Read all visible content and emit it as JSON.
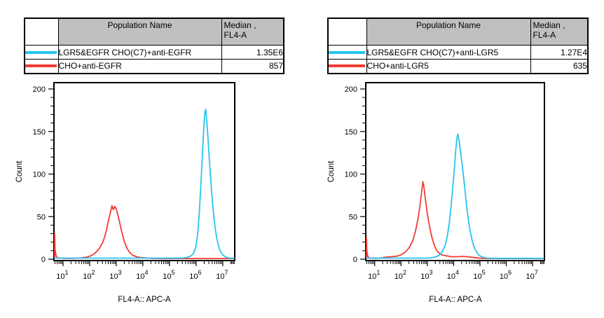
{
  "colors": {
    "cyan_series": "#25C5F0",
    "red_series": "#F53B33",
    "table_header_bg": "#C0C0C0",
    "frame": "#000000"
  },
  "panels": [
    {
      "table": {
        "header": {
          "population": "Population Name",
          "median_line1": "Median ,",
          "median_line2": "FL4-A"
        },
        "rows": [
          {
            "swatch_color": "#25C5F0",
            "population": "LGR5&EGFR CHO(C7)+anti-EGFR",
            "median": "1.35E6"
          },
          {
            "swatch_color": "#F53B33",
            "population": "CHO+anti-EGFR",
            "median": "857"
          }
        ]
      }
    },
    {
      "table": {
        "header": {
          "population": "Population Name",
          "median_line1": "Median ,",
          "median_line2": "FL4-A"
        },
        "rows": [
          {
            "swatch_color": "#25C5F0",
            "population": "LGR5&EGFR CHO(C7)+anti-LGR5",
            "median": "1.27E4"
          },
          {
            "swatch_color": "#F53B33",
            "population": "CHO+anti-LGR5",
            "median": "635"
          }
        ]
      }
    }
  ],
  "chart_data": [
    {
      "type": "line",
      "subtype": "flow-cytometry-histogram",
      "title": "",
      "xlabel": "FL4-A:: APC-A",
      "ylabel": "Count",
      "x_scale": "log10",
      "xlim_log10": [
        0.66,
        7.45
      ],
      "x_ticks_exponents": [
        1,
        2,
        3,
        4,
        5,
        6,
        7
      ],
      "ylim": [
        0,
        207
      ],
      "y_ticks": [
        0,
        50,
        100,
        150,
        200
      ],
      "y_minor_step": 10,
      "grid": false,
      "legend": "table-above",
      "series": [
        {
          "name": "CHO+anti-EGFR",
          "color": "#F53B33",
          "median_fl4a": "857",
          "points_log10x_count": [
            [
              0.66,
              2
            ],
            [
              0.67,
              30
            ],
            [
              0.7,
              12
            ],
            [
              0.74,
              4
            ],
            [
              0.8,
              1.5
            ],
            [
              1.0,
              1
            ],
            [
              1.4,
              1
            ],
            [
              1.7,
              1.5
            ],
            [
              1.9,
              2.5
            ],
            [
              2.05,
              4
            ],
            [
              2.2,
              7
            ],
            [
              2.35,
              12
            ],
            [
              2.5,
              20
            ],
            [
              2.6,
              30
            ],
            [
              2.7,
              44
            ],
            [
              2.78,
              55
            ],
            [
              2.84,
              63
            ],
            [
              2.89,
              58
            ],
            [
              2.95,
              62
            ],
            [
              3.0,
              59
            ],
            [
              3.06,
              52
            ],
            [
              3.12,
              44
            ],
            [
              3.2,
              33
            ],
            [
              3.3,
              21
            ],
            [
              3.4,
              13
            ],
            [
              3.5,
              8
            ],
            [
              3.62,
              4.5
            ],
            [
              3.75,
              3
            ],
            [
              3.9,
              2
            ],
            [
              4.1,
              1.5
            ],
            [
              4.35,
              1
            ],
            [
              4.7,
              0.7
            ],
            [
              7.45,
              0.7
            ]
          ]
        },
        {
          "name": "LGR5&EGFR CHO(C7)+anti-EGFR",
          "color": "#25C5F0",
          "median_fl4a": "1.35E6",
          "points_log10x_count": [
            [
              0.66,
              1.2
            ],
            [
              5.3,
              1.2
            ],
            [
              5.55,
              1.5
            ],
            [
              5.7,
              2.5
            ],
            [
              5.82,
              4
            ],
            [
              5.92,
              8
            ],
            [
              6.0,
              16
            ],
            [
              6.06,
              30
            ],
            [
              6.12,
              55
            ],
            [
              6.18,
              88
            ],
            [
              6.24,
              125
            ],
            [
              6.29,
              155
            ],
            [
              6.33,
              173
            ],
            [
              6.36,
              176
            ],
            [
              6.4,
              162
            ],
            [
              6.44,
              145
            ],
            [
              6.48,
              126
            ],
            [
              6.52,
              106
            ],
            [
              6.57,
              84
            ],
            [
              6.62,
              64
            ],
            [
              6.67,
              48
            ],
            [
              6.72,
              35
            ],
            [
              6.78,
              24
            ],
            [
              6.84,
              16
            ],
            [
              6.9,
              10
            ],
            [
              6.98,
              6
            ],
            [
              7.06,
              3.5
            ],
            [
              7.15,
              2
            ],
            [
              7.28,
              1.2
            ],
            [
              7.45,
              1
            ]
          ]
        }
      ]
    },
    {
      "type": "line",
      "subtype": "flow-cytometry-histogram",
      "title": "",
      "xlabel": "FL4-A:: APC-A",
      "ylabel": "Count",
      "x_scale": "log10",
      "xlim_log10": [
        0.66,
        7.45
      ],
      "x_ticks_exponents": [
        1,
        2,
        3,
        4,
        5,
        6,
        7
      ],
      "ylim": [
        0,
        207
      ],
      "y_ticks": [
        0,
        50,
        100,
        150,
        200
      ],
      "y_minor_step": 10,
      "grid": false,
      "legend": "table-above",
      "series": [
        {
          "name": "CHO+anti-LGR5",
          "color": "#F53B33",
          "median_fl4a": "635",
          "points_log10x_count": [
            [
              0.66,
              2
            ],
            [
              0.67,
              25
            ],
            [
              0.7,
              10
            ],
            [
              0.74,
              3
            ],
            [
              0.8,
              1.2
            ],
            [
              1.05,
              1
            ],
            [
              1.25,
              1.5
            ],
            [
              1.45,
              2.5
            ],
            [
              1.65,
              3
            ],
            [
              1.85,
              3.5
            ],
            [
              2.0,
              5
            ],
            [
              2.15,
              8
            ],
            [
              2.3,
              13
            ],
            [
              2.45,
              22
            ],
            [
              2.55,
              33
            ],
            [
              2.65,
              48
            ],
            [
              2.72,
              63
            ],
            [
              2.78,
              78
            ],
            [
              2.83,
              91
            ],
            [
              2.87,
              85
            ],
            [
              2.92,
              72
            ],
            [
              2.98,
              58
            ],
            [
              3.04,
              46
            ],
            [
              3.1,
              36
            ],
            [
              3.18,
              25
            ],
            [
              3.27,
              16
            ],
            [
              3.36,
              10
            ],
            [
              3.45,
              7
            ],
            [
              3.55,
              5
            ],
            [
              3.7,
              4
            ],
            [
              3.9,
              3
            ],
            [
              4.1,
              2.8
            ],
            [
              4.3,
              3.2
            ],
            [
              4.5,
              3
            ],
            [
              4.7,
              2.2
            ],
            [
              4.9,
              1.5
            ],
            [
              5.1,
              1
            ],
            [
              5.4,
              0.7
            ],
            [
              7.45,
              0.7
            ]
          ]
        },
        {
          "name": "LGR5&EGFR CHO(C7)+anti-LGR5",
          "color": "#25C5F0",
          "median_fl4a": "1.27E4",
          "points_log10x_count": [
            [
              0.66,
              1.2
            ],
            [
              2.9,
              1.2
            ],
            [
              3.1,
              1.5
            ],
            [
              3.3,
              2.5
            ],
            [
              3.45,
              4.5
            ],
            [
              3.55,
              8
            ],
            [
              3.65,
              14
            ],
            [
              3.75,
              25
            ],
            [
              3.83,
              42
            ],
            [
              3.9,
              62
            ],
            [
              3.97,
              85
            ],
            [
              4.03,
              108
            ],
            [
              4.08,
              128
            ],
            [
              4.13,
              143
            ],
            [
              4.16,
              147
            ],
            [
              4.2,
              141
            ],
            [
              4.26,
              126
            ],
            [
              4.32,
              112
            ],
            [
              4.38,
              96
            ],
            [
              4.44,
              78
            ],
            [
              4.5,
              60
            ],
            [
              4.57,
              44
            ],
            [
              4.64,
              31
            ],
            [
              4.71,
              21
            ],
            [
              4.78,
              14
            ],
            [
              4.86,
              9
            ],
            [
              4.95,
              5
            ],
            [
              5.05,
              3
            ],
            [
              5.15,
              2
            ],
            [
              5.3,
              1.2
            ],
            [
              5.6,
              1
            ],
            [
              7.45,
              1
            ]
          ]
        }
      ]
    }
  ]
}
